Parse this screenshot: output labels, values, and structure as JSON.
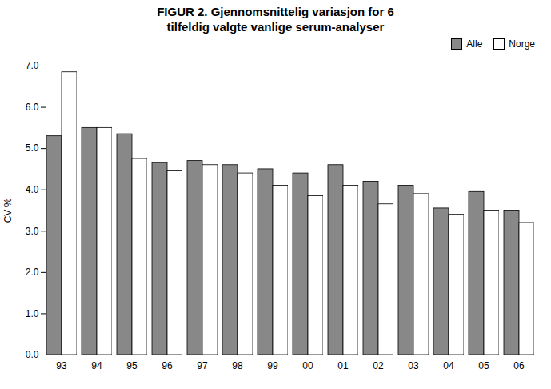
{
  "chart_data": {
    "type": "bar",
    "title": "FIGUR 2.  Gjennomsnittelig variasjon for 6\ntilfeldig valgte vanlige serum-analyser",
    "categories": [
      "93",
      "94",
      "95",
      "96",
      "97",
      "98",
      "99",
      "00",
      "01",
      "02",
      "03",
      "04",
      "05",
      "06"
    ],
    "series": [
      {
        "name": "Alle",
        "color": "#888888",
        "values": [
          5.3,
          5.5,
          5.35,
          4.65,
          4.7,
          4.6,
          4.5,
          4.4,
          4.6,
          4.2,
          4.1,
          3.55,
          3.95,
          3.5
        ]
      },
      {
        "name": "Norge",
        "color": "#FFFFFF",
        "values": [
          6.85,
          5.5,
          4.75,
          4.45,
          4.6,
          4.4,
          4.1,
          3.85,
          4.1,
          3.65,
          3.9,
          3.4,
          3.5,
          3.2
        ]
      }
    ],
    "ylabel": "CV %",
    "ylim": [
      0,
      7
    ],
    "yticks": [
      0,
      1,
      2,
      3,
      4,
      5,
      6,
      7
    ],
    "grid": false,
    "legend": "upper right"
  }
}
